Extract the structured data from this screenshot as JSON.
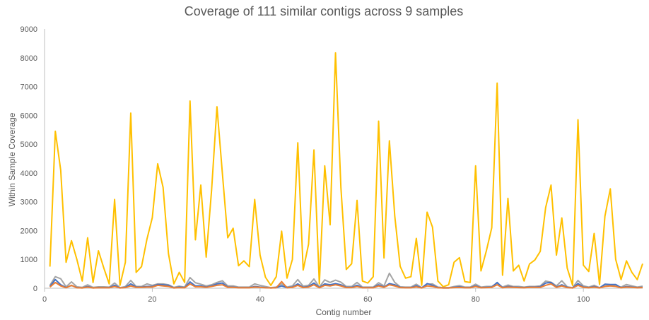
{
  "chart_data": {
    "type": "line",
    "title": "Coverage of 111 similar contigs across 9 samples",
    "xlabel": "Contig number",
    "ylabel": "Within Sample Coverage",
    "xlim": [
      0,
      111
    ],
    "ylim": [
      0,
      9000
    ],
    "x_ticks": [
      0,
      20,
      40,
      60,
      80,
      100
    ],
    "y_ticks": [
      0,
      1000,
      2000,
      3000,
      4000,
      5000,
      6000,
      7000,
      8000,
      9000
    ],
    "grid": false,
    "legend": "none",
    "series": [
      {
        "color": "#FFC000",
        "values": [
          750,
          5450,
          4100,
          900,
          1650,
          1000,
          250,
          1750,
          200,
          1300,
          700,
          150,
          3080,
          100,
          900,
          6080,
          550,
          750,
          1700,
          2450,
          4320,
          3500,
          1200,
          150,
          550,
          200,
          6500,
          1680,
          3580,
          1080,
          3400,
          6300,
          4000,
          1750,
          2080,
          780,
          950,
          750,
          3080,
          1150,
          380,
          100,
          400,
          1980,
          350,
          1000,
          5050,
          630,
          1530,
          4800,
          150,
          4250,
          2200,
          8170,
          3500,
          650,
          850,
          3050,
          250,
          180,
          400,
          5800,
          1050,
          5120,
          2500,
          760,
          350,
          400,
          1730,
          100,
          2640,
          2120,
          250,
          50,
          120,
          900,
          1060,
          230,
          200,
          4250,
          600,
          1300,
          2100,
          7120,
          450,
          3120,
          600,
          800,
          250,
          840,
          980,
          1280,
          2800,
          3580,
          1150,
          2440,
          700,
          100,
          5850,
          800,
          580,
          1900,
          130,
          2500,
          3450,
          1000,
          300,
          950,
          550,
          300,
          850
        ]
      },
      {
        "color": "#A5A5A5",
        "values": [
          100,
          400,
          330,
          50,
          220,
          50,
          30,
          120,
          30,
          50,
          50,
          40,
          180,
          20,
          60,
          270,
          60,
          60,
          150,
          100,
          150,
          150,
          120,
          30,
          70,
          40,
          370,
          190,
          140,
          80,
          120,
          200,
          260,
          80,
          80,
          40,
          40,
          40,
          150,
          100,
          60,
          20,
          40,
          150,
          40,
          80,
          300,
          70,
          100,
          320,
          40,
          290,
          200,
          280,
          210,
          60,
          60,
          200,
          40,
          40,
          40,
          190,
          80,
          520,
          200,
          50,
          40,
          40,
          140,
          20,
          140,
          150,
          40,
          20,
          20,
          60,
          90,
          40,
          40,
          140,
          40,
          60,
          60,
          180,
          40,
          110,
          60,
          60,
          40,
          60,
          60,
          80,
          250,
          210,
          80,
          260,
          50,
          20,
          270,
          80,
          40,
          100,
          20,
          80,
          110,
          80,
          40,
          130,
          80,
          40,
          70
        ]
      },
      {
        "color": "#4472C4",
        "values": [
          60,
          300,
          120,
          20,
          100,
          20,
          10,
          60,
          10,
          20,
          20,
          20,
          100,
          10,
          30,
          150,
          40,
          40,
          60,
          60,
          130,
          120,
          100,
          10,
          40,
          20,
          220,
          80,
          80,
          40,
          80,
          150,
          180,
          40,
          40,
          20,
          20,
          20,
          60,
          40,
          20,
          10,
          20,
          80,
          20,
          40,
          150,
          30,
          60,
          180,
          20,
          150,
          120,
          160,
          120,
          30,
          30,
          100,
          20,
          20,
          20,
          120,
          40,
          160,
          120,
          30,
          20,
          20,
          80,
          10,
          160,
          100,
          20,
          10,
          10,
          30,
          50,
          20,
          20,
          80,
          20,
          30,
          40,
          200,
          20,
          60,
          40,
          30,
          20,
          40,
          40,
          50,
          180,
          200,
          40,
          120,
          30,
          10,
          160,
          40,
          20,
          60,
          10,
          140,
          130,
          130,
          20,
          60,
          40,
          20,
          30
        ]
      },
      {
        "color": "#ED7D31",
        "values": [
          40,
          200,
          80,
          15,
          100,
          15,
          10,
          40,
          10,
          15,
          15,
          15,
          60,
          10,
          20,
          80,
          30,
          30,
          40,
          40,
          100,
          80,
          60,
          10,
          20,
          15,
          150,
          50,
          50,
          30,
          60,
          100,
          120,
          30,
          30,
          15,
          15,
          15,
          40,
          30,
          15,
          10,
          15,
          230,
          15,
          30,
          100,
          20,
          40,
          120,
          15,
          100,
          80,
          120,
          80,
          20,
          20,
          60,
          15,
          15,
          15,
          80,
          30,
          120,
          80,
          20,
          15,
          15,
          50,
          10,
          80,
          60,
          15,
          10,
          10,
          20,
          30,
          15,
          15,
          60,
          15,
          20,
          30,
          120,
          15,
          40,
          30,
          20,
          15,
          30,
          30,
          30,
          100,
          150,
          30,
          80,
          20,
          10,
          100,
          30,
          15,
          40,
          10,
          60,
          80,
          60,
          15,
          40,
          30,
          15,
          20
        ]
      }
    ]
  }
}
